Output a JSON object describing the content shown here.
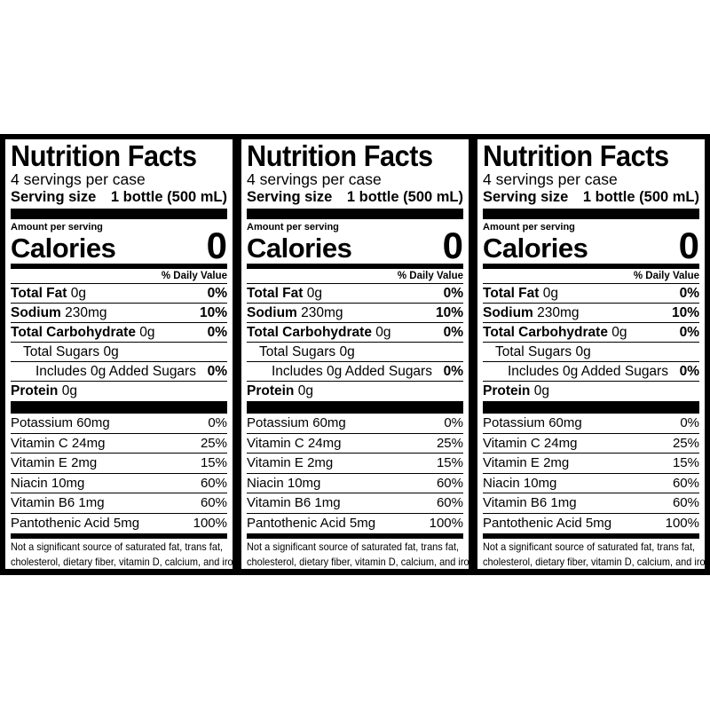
{
  "label": {
    "title": "Nutrition Facts",
    "servings_per_container": "4 servings per case",
    "serving_size_label": "Serving size",
    "serving_size_value": "1 bottle (500 mL)",
    "amount_per_serving": "Amount per serving",
    "calories_label": "Calories",
    "calories_value": "0",
    "daily_value_header": "% Daily Value",
    "nutrients": [
      {
        "name": "Total Fat",
        "amount": "0g",
        "dv": "0%"
      },
      {
        "name": "Sodium",
        "amount": "230mg",
        "dv": "10%"
      },
      {
        "name": "Total Carbohydrate",
        "amount": "0g",
        "dv": "0%"
      },
      {
        "name": "Total Sugars 0g",
        "amount": "",
        "dv": ""
      },
      {
        "name": "Includes 0g Added Sugars",
        "amount": "",
        "dv": "0%"
      },
      {
        "name": "Protein",
        "amount": "0g",
        "dv": ""
      }
    ],
    "vitamins": [
      {
        "name": "Potassium 60mg",
        "dv": "0%"
      },
      {
        "name": "Vitamin C 24mg",
        "dv": "25%"
      },
      {
        "name": "Vitamin E 2mg",
        "dv": "15%"
      },
      {
        "name": "Niacin 10mg",
        "dv": "60%"
      },
      {
        "name": "Vitamin B6 1mg",
        "dv": "60%"
      },
      {
        "name": "Pantothenic Acid 5mg",
        "dv": "100%"
      }
    ],
    "footnote_line1": "Not a significant source of saturated fat, trans fat,",
    "footnote_line2": "cholesterol, dietary fiber, vitamin D, calcium, and iron."
  }
}
